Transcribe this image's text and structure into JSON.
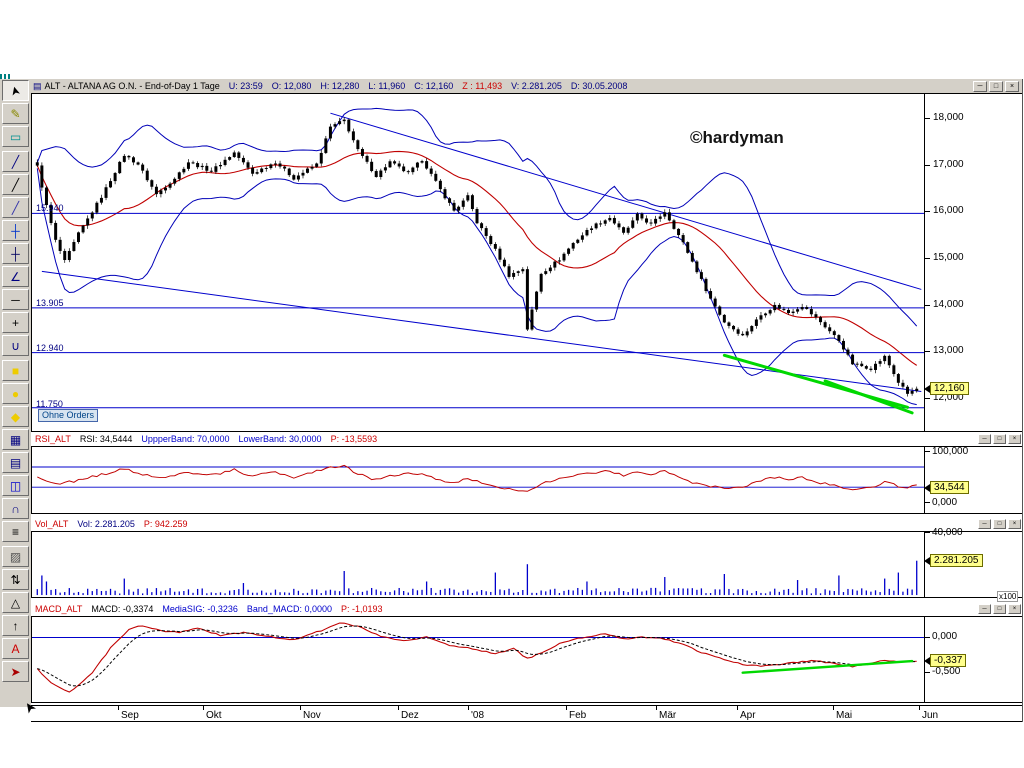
{
  "app": {
    "title": "ALT - ALTANA AG O.N. - End-of-Day 1 Tage",
    "title_fields": [
      {
        "text": "U: 23:59",
        "color": "#000080"
      },
      {
        "text": "O: 12,080",
        "color": "#000080"
      },
      {
        "text": "H: 12,280",
        "color": "#000080"
      },
      {
        "text": "L: 11,960",
        "color": "#000080"
      },
      {
        "text": "C: 12,160",
        "color": "#000080"
      },
      {
        "text": "Z : 11,493",
        "color": "#cc0000"
      },
      {
        "text": "V: 2.281.205",
        "color": "#000080"
      },
      {
        "text": "D: 30.05.2008",
        "color": "#000080"
      }
    ],
    "window_buttons": [
      "─",
      "□",
      "×"
    ]
  },
  "icons": {
    "window_menu": "▤",
    "mouse_cursor": "➤"
  },
  "watermark": "©hardyman",
  "toolbar": {
    "items": [
      {
        "name": "pointer-tool",
        "glyph": "➤",
        "color": "#000000",
        "selected": true,
        "rotate": -105
      },
      {
        "name": "pencil-tool",
        "glyph": "✎",
        "color": "#888800"
      },
      {
        "name": "selection-tool",
        "glyph": "▭",
        "color": "#009090"
      },
      {
        "name": "line-tool",
        "glyph": "╱",
        "color": "#000080"
      },
      {
        "name": "segment-tool",
        "glyph": "╱",
        "color": "#000000"
      },
      {
        "name": "ray-tool",
        "glyph": "╱",
        "color": "#3333aa"
      },
      {
        "name": "crosshair-tool",
        "glyph": "┼",
        "color": "#0033cc"
      },
      {
        "name": "cross-tool",
        "glyph": "┼",
        "color": "#000060"
      },
      {
        "name": "angle-tool",
        "glyph": "∠",
        "color": "#000080"
      },
      {
        "name": "hline-tool",
        "glyph": "─",
        "color": "#000000"
      },
      {
        "name": "plus-tool",
        "glyph": "+",
        "color": "#000000"
      },
      {
        "name": "curve-tool",
        "glyph": "∪",
        "color": "#000080"
      },
      {
        "name": "square-tool",
        "glyph": "■",
        "color": "#eecc00"
      },
      {
        "name": "ellipse-tool",
        "glyph": "●",
        "color": "#eecc00"
      },
      {
        "name": "diamond-tool",
        "glyph": "◆",
        "color": "#eecc00"
      },
      {
        "name": "grid-tool",
        "glyph": "▦",
        "color": "#000080"
      },
      {
        "name": "table-tool",
        "glyph": "▤",
        "color": "#000080"
      },
      {
        "name": "chart-tool",
        "glyph": "◫",
        "color": "#0000cc"
      },
      {
        "name": "arc-tool",
        "glyph": "∩",
        "color": "#000080"
      },
      {
        "name": "list-tool",
        "glyph": "≡",
        "color": "#000000"
      },
      {
        "name": "hatch-tool",
        "glyph": "▨",
        "color": "#555555"
      },
      {
        "name": "sort-tool",
        "glyph": "⇅",
        "color": "#000000"
      },
      {
        "name": "triangle-tool",
        "glyph": "△",
        "color": "#000000"
      },
      {
        "name": "arrow-up-tool",
        "glyph": "↑",
        "color": "#000000"
      },
      {
        "name": "text-tool",
        "glyph": "A",
        "color": "#cc0000"
      },
      {
        "name": "arrow-tool",
        "glyph": "➤",
        "color": "#aa0000"
      }
    ]
  },
  "main_chart": {
    "price_tag": "12,160",
    "orders_label": "Ohne Orders",
    "axis_ticks": [
      {
        "label": "18,000",
        "price": 18000
      },
      {
        "label": "17,000",
        "price": 17000
      },
      {
        "label": "16,000",
        "price": 16000
      },
      {
        "label": "15,000",
        "price": 15000
      },
      {
        "label": "14,000",
        "price": 14000
      },
      {
        "label": "13,000",
        "price": 13000
      },
      {
        "label": "12,000",
        "price": 12000
      }
    ],
    "levels": [
      {
        "label": "15.940",
        "price": 15940
      },
      {
        "label": "13.905",
        "price": 13905
      },
      {
        "label": "12.940",
        "price": 12940
      },
      {
        "label": "11.750",
        "price": 11750
      }
    ]
  },
  "rsi_panel": {
    "header": [
      {
        "text": "RSI_ALT",
        "color": "#cc0000"
      },
      {
        "text": "RSI: 34,5444",
        "color": "#000000"
      },
      {
        "text": "UppperBand: 70,0000",
        "color": "#0000cc"
      },
      {
        "text": "LowerBand: 30,0000",
        "color": "#0000cc"
      },
      {
        "text": "P: -13,5593",
        "color": "#cc0000"
      }
    ],
    "axis_top": "100,000",
    "axis_bottom": "0,000",
    "tag": "34,544"
  },
  "volume_panel": {
    "header": [
      {
        "text": "Vol_ALT",
        "color": "#cc0000"
      },
      {
        "text": "Vol: 2.281.205",
        "color": "#000080"
      },
      {
        "text": "P: 942.259",
        "color": "#cc0000"
      }
    ],
    "axis_top": "40,000",
    "tag": "2.281.205",
    "unit": "x100"
  },
  "macd_panel": {
    "header": [
      {
        "text": "MACD_ALT",
        "color": "#cc0000"
      },
      {
        "text": "MACD: -0,3374",
        "color": "#000000"
      },
      {
        "text": "MediaSIG: -0,3236",
        "color": "#0000cc"
      },
      {
        "text": "Band_MACD: 0,0000",
        "color": "#0000cc"
      },
      {
        "text": "P: -1,0193",
        "color": "#cc0000"
      }
    ],
    "axis_zero": "0,000",
    "axis_low": "-0,500",
    "tag": "-0,337"
  },
  "timeline": {
    "months": [
      {
        "label": "Sep",
        "f": 0.0973
      },
      {
        "label": "Okt",
        "f": 0.1924
      },
      {
        "label": "Nov",
        "f": 0.3009
      },
      {
        "label": "Dez",
        "f": 0.4105
      },
      {
        "label": "'08",
        "f": 0.4888
      },
      {
        "label": "Feb",
        "f": 0.5985
      },
      {
        "label": "Mär",
        "f": 0.6991
      },
      {
        "label": "Apr",
        "f": 0.7897
      },
      {
        "label": "Mai",
        "f": 0.8971
      },
      {
        "label": "Jun",
        "f": 0.9933
      }
    ]
  },
  "chart_data": {
    "type": "candlestick",
    "symbol": "ALT",
    "name": "ALTANA AG O.N.",
    "months": [
      "Sep",
      "Okt",
      "Nov",
      "Dez",
      "'08",
      "Feb",
      "Mär",
      "Apr",
      "Mai",
      "Jun"
    ],
    "n_days": 193,
    "ylim": [
      11249,
      18514
    ],
    "last_price": 12160,
    "price_anchors": [
      [
        0,
        16950
      ],
      [
        2,
        16100
      ],
      [
        4,
        15350
      ],
      [
        6,
        14900
      ],
      [
        9,
        15500
      ],
      [
        14,
        16300
      ],
      [
        19,
        17200
      ],
      [
        22,
        17000
      ],
      [
        26,
        16350
      ],
      [
        30,
        16700
      ],
      [
        33,
        17050
      ],
      [
        38,
        16850
      ],
      [
        43,
        17250
      ],
      [
        47,
        16800
      ],
      [
        52,
        17050
      ],
      [
        56,
        16700
      ],
      [
        61,
        17000
      ],
      [
        64,
        17800
      ],
      [
        67,
        17950
      ],
      [
        70,
        17300
      ],
      [
        74,
        16750
      ],
      [
        77,
        17050
      ],
      [
        81,
        16800
      ],
      [
        84,
        17100
      ],
      [
        88,
        16450
      ],
      [
        91,
        16000
      ],
      [
        94,
        16300
      ],
      [
        96,
        15750
      ],
      [
        100,
        15150
      ],
      [
        103,
        14600
      ],
      [
        106,
        14750
      ],
      [
        107,
        13450
      ],
      [
        110,
        14650
      ],
      [
        114,
        14950
      ],
      [
        117,
        15300
      ],
      [
        121,
        15650
      ],
      [
        125,
        15850
      ],
      [
        128,
        15500
      ],
      [
        131,
        15900
      ],
      [
        134,
        15700
      ],
      [
        137,
        15980
      ],
      [
        141,
        15300
      ],
      [
        144,
        14700
      ],
      [
        147,
        14100
      ],
      [
        150,
        13600
      ],
      [
        154,
        13300
      ],
      [
        158,
        13750
      ],
      [
        161,
        13950
      ],
      [
        164,
        13800
      ],
      [
        167,
        13950
      ],
      [
        171,
        13600
      ],
      [
        175,
        13200
      ],
      [
        178,
        12700
      ],
      [
        182,
        12600
      ],
      [
        185,
        12850
      ],
      [
        188,
        12300
      ],
      [
        190,
        12050
      ],
      [
        192,
        12160
      ]
    ],
    "levels": [
      15940,
      13905,
      12940,
      11750
    ],
    "trendlines": [
      [
        64,
        18100,
        193,
        14300
      ],
      [
        1,
        14690,
        193,
        12100
      ]
    ],
    "green_lines_price": [
      [
        150,
        12880,
        190,
        11760
      ],
      [
        172,
        12330,
        191,
        11640
      ]
    ],
    "rsi": {
      "upper": 70,
      "lower": 30,
      "last": 34.5444,
      "range": [
        0,
        100
      ],
      "anchors": [
        [
          0,
          50
        ],
        [
          4,
          35
        ],
        [
          8,
          42
        ],
        [
          14,
          55
        ],
        [
          19,
          66
        ],
        [
          26,
          48
        ],
        [
          33,
          60
        ],
        [
          38,
          54
        ],
        [
          43,
          64
        ],
        [
          47,
          52
        ],
        [
          52,
          60
        ],
        [
          56,
          50
        ],
        [
          64,
          68
        ],
        [
          67,
          72
        ],
        [
          70,
          56
        ],
        [
          74,
          44
        ],
        [
          77,
          54
        ],
        [
          84,
          58
        ],
        [
          88,
          44
        ],
        [
          91,
          38
        ],
        [
          94,
          47
        ],
        [
          100,
          32
        ],
        [
          103,
          27
        ],
        [
          107,
          20
        ],
        [
          110,
          36
        ],
        [
          114,
          46
        ],
        [
          117,
          52
        ],
        [
          121,
          58
        ],
        [
          125,
          62
        ],
        [
          128,
          52
        ],
        [
          131,
          60
        ],
        [
          134,
          55
        ],
        [
          137,
          62
        ],
        [
          141,
          46
        ],
        [
          144,
          37
        ],
        [
          147,
          32
        ],
        [
          150,
          29
        ],
        [
          154,
          31
        ],
        [
          158,
          43
        ],
        [
          161,
          49
        ],
        [
          164,
          45
        ],
        [
          167,
          49
        ],
        [
          171,
          39
        ],
        [
          175,
          31
        ],
        [
          178,
          26
        ],
        [
          182,
          29
        ],
        [
          185,
          41
        ],
        [
          188,
          31
        ],
        [
          190,
          28
        ],
        [
          192,
          34.5
        ]
      ]
    },
    "volume": {
      "axis_max_x100": 40000,
      "max": 4000000,
      "last": 2281205,
      "prev": 942259,
      "spikes": [
        [
          1,
          1300000
        ],
        [
          2,
          900000
        ],
        [
          19,
          1100000
        ],
        [
          45,
          800000
        ],
        [
          67,
          1600000
        ],
        [
          85,
          900000
        ],
        [
          100,
          1500000
        ],
        [
          107,
          2050000
        ],
        [
          120,
          900000
        ],
        [
          137,
          1200000
        ],
        [
          150,
          1400000
        ],
        [
          166,
          1000000
        ],
        [
          175,
          1300000
        ],
        [
          185,
          1100000
        ],
        [
          188,
          1500000
        ],
        [
          192,
          2281205
        ]
      ]
    },
    "macd": {
      "last": -0.3374,
      "signal_last": -0.3236,
      "band": 0.0,
      "range": [
        -0.92,
        0.29
      ],
      "green_line": [
        [
          154,
          -0.5
        ],
        [
          191,
          -0.335
        ]
      ],
      "anchors": [
        [
          0,
          -0.45
        ],
        [
          3,
          -0.65
        ],
        [
          7,
          -0.78
        ],
        [
          12,
          -0.5
        ],
        [
          16,
          -0.15
        ],
        [
          20,
          0.12
        ],
        [
          23,
          0.17
        ],
        [
          27,
          0.1
        ],
        [
          31,
          0.07
        ],
        [
          35,
          0.13
        ],
        [
          40,
          0.03
        ],
        [
          45,
          0.07
        ],
        [
          50,
          0.02
        ],
        [
          56,
          -0.03
        ],
        [
          62,
          0.1
        ],
        [
          66,
          0.21
        ],
        [
          70,
          0.16
        ],
        [
          75,
          0.02
        ],
        [
          80,
          -0.05
        ],
        [
          85,
          0.01
        ],
        [
          90,
          -0.11
        ],
        [
          95,
          -0.16
        ],
        [
          100,
          -0.23
        ],
        [
          104,
          -0.16
        ],
        [
          107,
          -0.3
        ],
        [
          111,
          -0.19
        ],
        [
          115,
          -0.06
        ],
        [
          120,
          0.01
        ],
        [
          124,
          0.05
        ],
        [
          128,
          -0.02
        ],
        [
          132,
          0.01
        ],
        [
          137,
          -0.02
        ],
        [
          141,
          -0.1
        ],
        [
          145,
          -0.21
        ],
        [
          150,
          -0.31
        ],
        [
          154,
          -0.38
        ],
        [
          158,
          -0.41
        ],
        [
          162,
          -0.38
        ],
        [
          166,
          -0.35
        ],
        [
          170,
          -0.33
        ],
        [
          174,
          -0.37
        ],
        [
          178,
          -0.41
        ],
        [
          182,
          -0.36
        ],
        [
          185,
          -0.32
        ],
        [
          188,
          -0.35
        ],
        [
          192,
          -0.3374
        ]
      ]
    }
  }
}
